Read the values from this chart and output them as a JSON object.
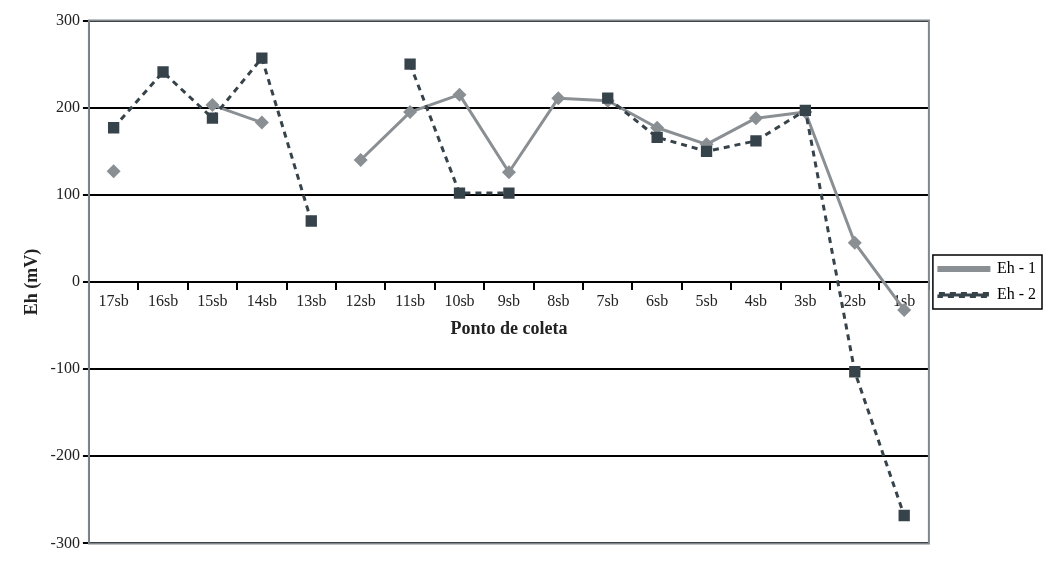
{
  "chart_data": {
    "type": "line",
    "xlabel": "Ponto de coleta",
    "ylabel": "Eh (mV)",
    "categories": [
      "17sb",
      "16sb",
      "15sb",
      "14sb",
      "13sb",
      "12sb",
      "11sb",
      "10sb",
      "9sb",
      "8sb",
      "7sb",
      "6sb",
      "5sb",
      "4sb",
      "3sb",
      "2sb",
      "1sb"
    ],
    "series": [
      {
        "name": "Eh - 1",
        "color": "#8a8f94",
        "marker": "diamond",
        "line_style": "solid",
        "values": [
          127,
          null,
          203,
          183,
          null,
          140,
          195,
          215,
          126,
          211,
          208,
          177,
          158,
          188,
          195,
          45,
          -32
        ]
      },
      {
        "name": "Eh - 2",
        "color": "#37434a",
        "marker": "square",
        "line_style": "dashed",
        "values": [
          177,
          241,
          188,
          257,
          70,
          null,
          250,
          102,
          102,
          null,
          211,
          166,
          150,
          162,
          197,
          -103,
          -268
        ]
      }
    ],
    "ylim": [
      -300,
      300
    ],
    "yticks": [
      -300,
      -200,
      -100,
      0,
      100,
      200,
      300
    ],
    "grid": "y",
    "legend": "right"
  }
}
